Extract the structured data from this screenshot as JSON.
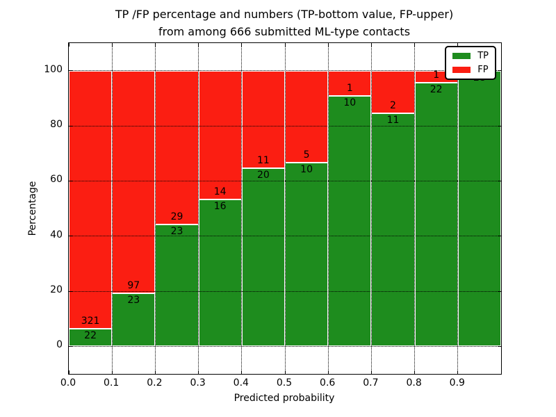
{
  "figure": {
    "title_line1": "TP /FP percentage and numbers (TP-bottom value, FP-upper)",
    "title_line2": "from among 666 submitted ML-type contacts"
  },
  "axes": {
    "xlabel": "Predicted probability",
    "ylabel": "Percentage",
    "yticks": [
      "0",
      "20",
      "40",
      "60",
      "80",
      "100"
    ],
    "xticks": [
      "0.0",
      "0.1",
      "0.2",
      "0.3",
      "0.4",
      "0.5",
      "0.6",
      "0.7",
      "0.8",
      "0.9"
    ]
  },
  "legend": {
    "items": [
      {
        "label": "TP",
        "color": "#1e8c1e"
      },
      {
        "label": "FP",
        "color": "#fb1e12"
      }
    ]
  },
  "colors": {
    "tp": "#1e8c1e",
    "fp": "#fb1e12",
    "grid": "#000000",
    "spine": "#000000",
    "background": "#ffffff"
  },
  "chart_data": {
    "type": "bar",
    "stacked": true,
    "normalized": "each bar stacks to 100%",
    "title": "TP /FP percentage and numbers (TP-bottom value, FP-upper) from among 666 submitted ML-type contacts",
    "xlabel": "Predicted probability",
    "ylabel": "Percentage",
    "xlim": [
      0.0,
      1.0
    ],
    "ylim": [
      -10,
      110
    ],
    "grid": true,
    "legend_position": "upper right",
    "total_submitted": 666,
    "categories": [
      "0.0-0.1",
      "0.1-0.2",
      "0.2-0.3",
      "0.3-0.4",
      "0.4-0.5",
      "0.5-0.6",
      "0.6-0.7",
      "0.7-0.8",
      "0.8-0.9",
      "0.9-1.0"
    ],
    "bins": [
      {
        "x0": 0.0,
        "x1": 0.1,
        "tp": 22,
        "fp": 321,
        "tp_pct": 6.41,
        "fp_pct": 93.59
      },
      {
        "x0": 0.1,
        "x1": 0.2,
        "tp": 23,
        "fp": 97,
        "tp_pct": 19.17,
        "fp_pct": 80.83
      },
      {
        "x0": 0.2,
        "x1": 0.3,
        "tp": 23,
        "fp": 29,
        "tp_pct": 44.23,
        "fp_pct": 55.77
      },
      {
        "x0": 0.3,
        "x1": 0.4,
        "tp": 16,
        "fp": 14,
        "tp_pct": 53.33,
        "fp_pct": 46.67
      },
      {
        "x0": 0.4,
        "x1": 0.5,
        "tp": 20,
        "fp": 11,
        "tp_pct": 64.52,
        "fp_pct": 35.48
      },
      {
        "x0": 0.5,
        "x1": 0.6,
        "tp": 10,
        "fp": 5,
        "tp_pct": 66.67,
        "fp_pct": 33.33
      },
      {
        "x0": 0.6,
        "x1": 0.7,
        "tp": 10,
        "fp": 1,
        "tp_pct": 90.91,
        "fp_pct": 9.09
      },
      {
        "x0": 0.7,
        "x1": 0.8,
        "tp": 11,
        "fp": 2,
        "tp_pct": 84.62,
        "fp_pct": 15.38
      },
      {
        "x0": 0.8,
        "x1": 0.9,
        "tp": 22,
        "fp": 1,
        "tp_pct": 95.65,
        "fp_pct": 4.35
      },
      {
        "x0": 0.9,
        "x1": 1.0,
        "tp": 28,
        "fp": 0,
        "tp_pct": 100.0,
        "fp_pct": 0.0
      }
    ],
    "series": [
      {
        "name": "TP",
        "values": [
          6.41,
          19.17,
          44.23,
          53.33,
          64.52,
          66.67,
          90.91,
          84.62,
          95.65,
          100.0
        ]
      },
      {
        "name": "FP",
        "values": [
          93.59,
          80.83,
          55.77,
          46.67,
          35.48,
          33.33,
          9.09,
          15.38,
          4.35,
          0.0
        ]
      }
    ]
  }
}
